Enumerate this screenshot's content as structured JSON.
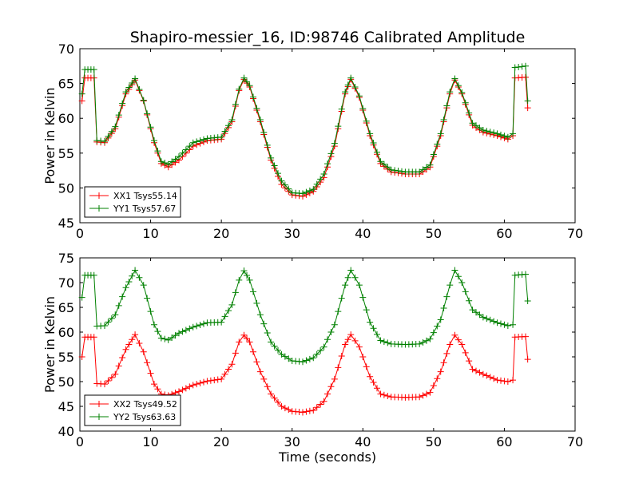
{
  "figure": {
    "title": "Shapiro-messier_16, ID:98746 Calibrated Amplitude",
    "xlabel": "Time (seconds)"
  },
  "chart_data": [
    {
      "type": "line",
      "title": "Shapiro-messier_16, ID:98746 Calibrated Amplitude",
      "xlabel": "",
      "ylabel": "Power in Kelvin",
      "xlim": [
        0,
        70
      ],
      "ylim": [
        45,
        70
      ],
      "xticks": [
        0,
        10,
        20,
        30,
        40,
        50,
        60,
        70
      ],
      "yticks": [
        45,
        50,
        55,
        60,
        65,
        70
      ],
      "grid": false,
      "legend": "lower-left",
      "marker": "+",
      "series": [
        {
          "name": "XX1 Tsys55.14",
          "color": "#ff0000",
          "points": [
            [
              0.3,
              62.5
            ],
            [
              0.7,
              65.8
            ],
            [
              2.0,
              65.8
            ],
            [
              2.4,
              56.6
            ],
            [
              3.5,
              56.5
            ],
            [
              5.0,
              58.5
            ],
            [
              6.5,
              63.5
            ],
            [
              7.8,
              65.5
            ],
            [
              9.0,
              62.5
            ],
            [
              10.5,
              56.5
            ],
            [
              11.5,
              53.5
            ],
            [
              12.5,
              53.0
            ],
            [
              14.0,
              54.0
            ],
            [
              16.0,
              56.0
            ],
            [
              18.0,
              56.8
            ],
            [
              20.0,
              57.0
            ],
            [
              21.5,
              59.5
            ],
            [
              22.5,
              64.0
            ],
            [
              23.2,
              65.6
            ],
            [
              24.0,
              64.5
            ],
            [
              25.5,
              59.5
            ],
            [
              27.0,
              54.0
            ],
            [
              28.5,
              50.5
            ],
            [
              30.0,
              49.0
            ],
            [
              31.5,
              48.8
            ],
            [
              33.0,
              49.5
            ],
            [
              34.5,
              51.5
            ],
            [
              36.0,
              56.0
            ],
            [
              37.5,
              63.5
            ],
            [
              38.3,
              65.6
            ],
            [
              39.5,
              63.0
            ],
            [
              41.0,
              57.5
            ],
            [
              42.5,
              53.5
            ],
            [
              44.0,
              52.3
            ],
            [
              46.0,
              52.0
            ],
            [
              48.0,
              52.0
            ],
            [
              49.5,
              53.0
            ],
            [
              51.0,
              57.5
            ],
            [
              52.3,
              63.5
            ],
            [
              53.0,
              65.5
            ],
            [
              54.0,
              63.5
            ],
            [
              55.5,
              59.0
            ],
            [
              57.0,
              58.0
            ],
            [
              59.0,
              57.5
            ],
            [
              60.5,
              57.0
            ],
            [
              61.2,
              57.5
            ],
            [
              61.5,
              65.8
            ],
            [
              63.0,
              65.9
            ],
            [
              63.3,
              61.5
            ]
          ]
        },
        {
          "name": "YY1 Tsys57.67",
          "color": "#008000",
          "points": [
            [
              0.3,
              63.5
            ],
            [
              0.7,
              67.0
            ],
            [
              2.0,
              67.0
            ],
            [
              2.4,
              56.8
            ],
            [
              3.5,
              56.7
            ],
            [
              5.0,
              58.8
            ],
            [
              6.5,
              63.8
            ],
            [
              7.8,
              65.7
            ],
            [
              9.0,
              62.6
            ],
            [
              10.5,
              56.8
            ],
            [
              11.5,
              53.8
            ],
            [
              12.5,
              53.4
            ],
            [
              14.0,
              54.5
            ],
            [
              16.0,
              56.5
            ],
            [
              18.0,
              57.1
            ],
            [
              20.0,
              57.3
            ],
            [
              21.5,
              59.8
            ],
            [
              22.5,
              64.2
            ],
            [
              23.2,
              65.8
            ],
            [
              24.0,
              64.7
            ],
            [
              25.5,
              59.8
            ],
            [
              27.0,
              54.3
            ],
            [
              28.5,
              51.0
            ],
            [
              30.0,
              49.3
            ],
            [
              31.5,
              49.2
            ],
            [
              33.0,
              49.8
            ],
            [
              34.5,
              52.0
            ],
            [
              36.0,
              56.4
            ],
            [
              37.5,
              63.8
            ],
            [
              38.3,
              65.8
            ],
            [
              39.5,
              63.2
            ],
            [
              41.0,
              57.8
            ],
            [
              42.5,
              53.8
            ],
            [
              44.0,
              52.6
            ],
            [
              46.0,
              52.3
            ],
            [
              48.0,
              52.3
            ],
            [
              49.5,
              53.3
            ],
            [
              51.0,
              57.8
            ],
            [
              52.3,
              63.8
            ],
            [
              53.0,
              65.7
            ],
            [
              54.0,
              63.7
            ],
            [
              55.5,
              59.3
            ],
            [
              57.0,
              58.3
            ],
            [
              59.0,
              57.8
            ],
            [
              60.5,
              57.3
            ],
            [
              61.2,
              57.8
            ],
            [
              61.5,
              67.3
            ],
            [
              63.0,
              67.5
            ],
            [
              63.3,
              62.5
            ]
          ]
        }
      ]
    },
    {
      "type": "line",
      "title": "",
      "xlabel": "Time (seconds)",
      "ylabel": "Power in Kelvin",
      "xlim": [
        0,
        70
      ],
      "ylim": [
        40,
        75
      ],
      "xticks": [
        0,
        10,
        20,
        30,
        40,
        50,
        60,
        70
      ],
      "yticks": [
        40,
        45,
        50,
        55,
        60,
        65,
        70,
        75
      ],
      "grid": false,
      "legend": "lower-left",
      "marker": "+",
      "series": [
        {
          "name": "XX2 Tsys49.52",
          "color": "#ff0000",
          "points": [
            [
              0.3,
              55.0
            ],
            [
              0.7,
              59.0
            ],
            [
              2.0,
              59.0
            ],
            [
              2.4,
              49.6
            ],
            [
              3.5,
              49.5
            ],
            [
              5.0,
              51.5
            ],
            [
              6.5,
              56.5
            ],
            [
              7.8,
              59.5
            ],
            [
              9.0,
              56.0
            ],
            [
              10.5,
              49.5
            ],
            [
              11.5,
              47.5
            ],
            [
              12.5,
              47.2
            ],
            [
              14.0,
              48.0
            ],
            [
              16.0,
              49.3
            ],
            [
              18.0,
              50.1
            ],
            [
              20.0,
              50.5
            ],
            [
              21.5,
              53.5
            ],
            [
              22.5,
              58.0
            ],
            [
              23.2,
              59.4
            ],
            [
              24.0,
              58.0
            ],
            [
              25.5,
              52.0
            ],
            [
              27.0,
              47.5
            ],
            [
              28.5,
              45.0
            ],
            [
              30.0,
              44.0
            ],
            [
              31.5,
              43.8
            ],
            [
              33.0,
              44.2
            ],
            [
              34.5,
              46.0
            ],
            [
              36.0,
              50.5
            ],
            [
              37.5,
              57.5
            ],
            [
              38.3,
              59.5
            ],
            [
              39.5,
              57.0
            ],
            [
              41.0,
              51.0
            ],
            [
              42.5,
              47.5
            ],
            [
              44.0,
              46.9
            ],
            [
              46.0,
              46.8
            ],
            [
              48.0,
              46.9
            ],
            [
              49.5,
              47.8
            ],
            [
              51.0,
              52.0
            ],
            [
              52.3,
              57.5
            ],
            [
              53.0,
              59.4
            ],
            [
              54.0,
              57.5
            ],
            [
              55.5,
              52.5
            ],
            [
              57.0,
              51.5
            ],
            [
              59.0,
              50.3
            ],
            [
              60.5,
              50.0
            ],
            [
              61.2,
              50.3
            ],
            [
              61.5,
              59.0
            ],
            [
              63.0,
              59.1
            ],
            [
              63.3,
              54.5
            ]
          ]
        },
        {
          "name": "YY2 Tsys63.63",
          "color": "#008000",
          "points": [
            [
              0.3,
              67.0
            ],
            [
              0.7,
              71.5
            ],
            [
              2.0,
              71.5
            ],
            [
              2.4,
              61.2
            ],
            [
              3.5,
              61.3
            ],
            [
              5.0,
              63.5
            ],
            [
              6.5,
              69.0
            ],
            [
              7.8,
              72.5
            ],
            [
              9.0,
              69.5
            ],
            [
              10.5,
              61.5
            ],
            [
              11.5,
              58.8
            ],
            [
              12.5,
              58.4
            ],
            [
              14.0,
              59.8
            ],
            [
              16.0,
              61.0
            ],
            [
              18.0,
              61.9
            ],
            [
              20.0,
              62.0
            ],
            [
              21.5,
              65.5
            ],
            [
              22.5,
              70.5
            ],
            [
              23.2,
              72.4
            ],
            [
              24.0,
              70.5
            ],
            [
              25.5,
              63.5
            ],
            [
              27.0,
              58.0
            ],
            [
              28.5,
              55.5
            ],
            [
              30.0,
              54.2
            ],
            [
              31.5,
              54.0
            ],
            [
              33.0,
              54.8
            ],
            [
              34.5,
              57.0
            ],
            [
              36.0,
              61.5
            ],
            [
              37.5,
              69.5
            ],
            [
              38.3,
              72.5
            ],
            [
              39.5,
              69.5
            ],
            [
              41.0,
              62.0
            ],
            [
              42.5,
              58.3
            ],
            [
              44.0,
              57.6
            ],
            [
              46.0,
              57.5
            ],
            [
              48.0,
              57.6
            ],
            [
              49.5,
              58.6
            ],
            [
              51.0,
              62.5
            ],
            [
              52.3,
              69.5
            ],
            [
              53.0,
              72.5
            ],
            [
              54.0,
              70.0
            ],
            [
              55.5,
              64.5
            ],
            [
              57.0,
              63.0
            ],
            [
              59.0,
              61.9
            ],
            [
              60.5,
              61.3
            ],
            [
              61.2,
              61.5
            ],
            [
              61.5,
              71.5
            ],
            [
              63.0,
              71.7
            ],
            [
              63.3,
              66.3
            ]
          ]
        }
      ]
    }
  ]
}
